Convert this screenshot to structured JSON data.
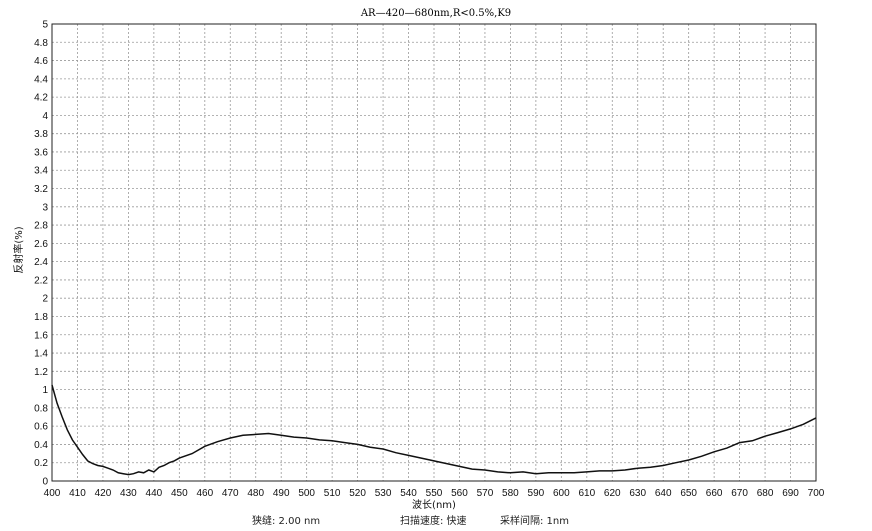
{
  "chart_data": {
    "type": "line",
    "title": "AR—420—680nm,R<0.5%,K9",
    "xlabel": "波长(nm)",
    "ylabel": "反射率(%)",
    "xlim": [
      400,
      700
    ],
    "ylim": [
      0,
      5
    ],
    "xticks": [
      400,
      410,
      420,
      430,
      440,
      450,
      460,
      470,
      480,
      490,
      500,
      510,
      520,
      530,
      540,
      550,
      560,
      570,
      580,
      590,
      600,
      610,
      620,
      630,
      640,
      650,
      660,
      670,
      680,
      690,
      700
    ],
    "yticks": [
      0,
      0.2,
      0.4,
      0.6,
      0.8,
      1,
      1.2,
      1.4,
      1.6,
      1.8,
      2,
      2.2,
      2.4,
      2.6,
      2.8,
      3,
      3.2,
      3.4,
      3.6,
      3.8,
      4,
      4.2,
      4.4,
      4.6,
      4.8,
      5
    ],
    "grid": true,
    "series": [
      {
        "color": "#111111",
        "x": [
          400,
          402,
          404,
          406,
          408,
          410,
          412,
          414,
          416,
          418,
          420,
          422,
          424,
          426,
          428,
          430,
          432,
          434,
          436,
          438,
          440,
          442,
          444,
          446,
          448,
          450,
          455,
          460,
          465,
          470,
          475,
          480,
          485,
          490,
          495,
          500,
          505,
          510,
          515,
          520,
          525,
          530,
          535,
          540,
          545,
          550,
          555,
          560,
          565,
          570,
          575,
          580,
          585,
          590,
          595,
          600,
          605,
          610,
          615,
          620,
          625,
          630,
          635,
          640,
          645,
          650,
          655,
          660,
          665,
          670,
          675,
          680,
          685,
          690,
          695,
          700
        ],
        "y": [
          1.05,
          0.85,
          0.7,
          0.56,
          0.45,
          0.37,
          0.29,
          0.22,
          0.19,
          0.17,
          0.16,
          0.14,
          0.12,
          0.09,
          0.08,
          0.07,
          0.08,
          0.1,
          0.09,
          0.12,
          0.1,
          0.15,
          0.17,
          0.2,
          0.22,
          0.25,
          0.3,
          0.38,
          0.43,
          0.47,
          0.5,
          0.51,
          0.52,
          0.5,
          0.48,
          0.47,
          0.45,
          0.44,
          0.42,
          0.4,
          0.37,
          0.35,
          0.31,
          0.28,
          0.25,
          0.22,
          0.19,
          0.16,
          0.13,
          0.12,
          0.1,
          0.09,
          0.1,
          0.08,
          0.09,
          0.09,
          0.09,
          0.1,
          0.11,
          0.11,
          0.12,
          0.14,
          0.15,
          0.17,
          0.2,
          0.23,
          0.27,
          0.32,
          0.36,
          0.42,
          0.44,
          0.49,
          0.53,
          0.57,
          0.62,
          0.69
        ]
      }
    ]
  },
  "footer": {
    "bandwidth": "狭缝: 2.00 nm",
    "scan_speed": "扫描速度: 快速",
    "interval": "采样间隔:    1nm"
  }
}
